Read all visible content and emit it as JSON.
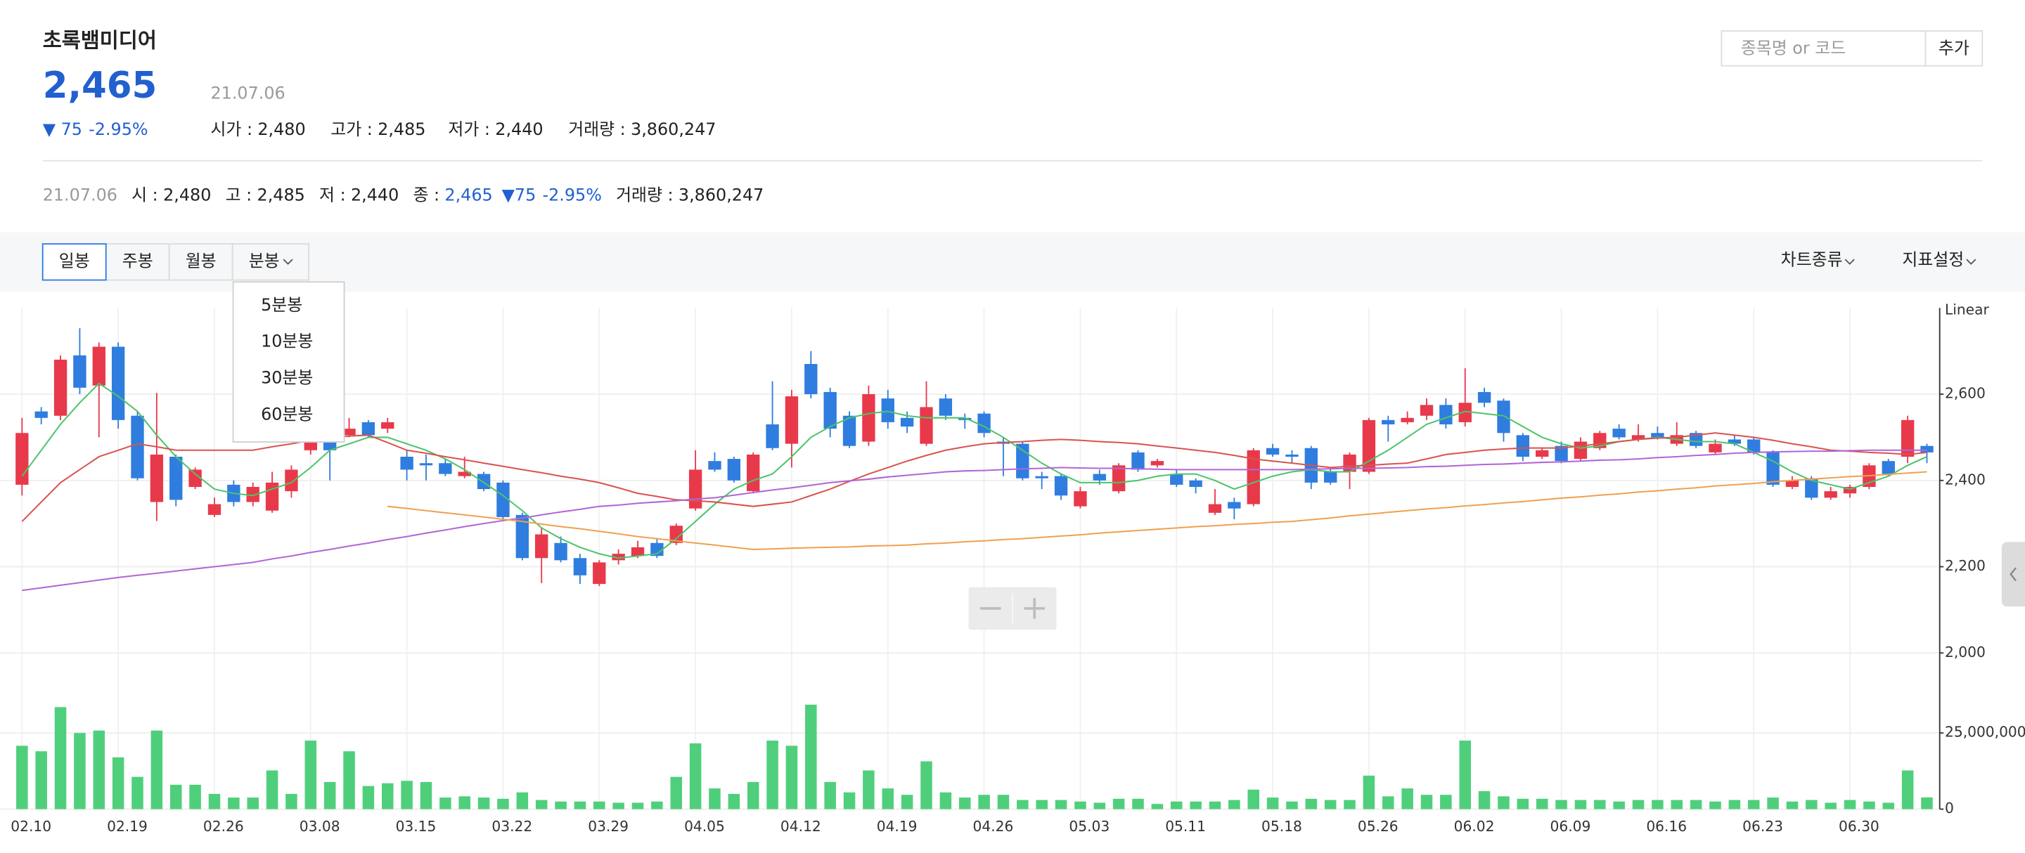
{
  "header": {
    "name": "초록뱀미디어",
    "price": "2,465",
    "change": "▼ 75",
    "change_rate": "-2.95%",
    "date": "21.07.06",
    "stats": [
      {
        "label": "시가 :",
        "value": "2,480"
      },
      {
        "label": "고가 :",
        "value": "2,485"
      },
      {
        "label": "저가 :",
        "value": "2,440"
      },
      {
        "label": "거래량 :",
        "value": "3,860,247"
      }
    ]
  },
  "search": {
    "placeholder": "종목명 or 코드",
    "button": "추가"
  },
  "summary": {
    "date": "21.07.06",
    "items": [
      {
        "label": "시 :",
        "value": "2,480"
      },
      {
        "label": "고 :",
        "value": "2,485"
      },
      {
        "label": "저 :",
        "value": "2,440"
      },
      {
        "label": "종 :",
        "value": "2,465"
      }
    ],
    "change": "▼75",
    "change_rate": "-2.95%",
    "volume_label": "거래량 :",
    "volume": "3,860,247"
  },
  "toolbar": {
    "periods": [
      "일봉",
      "주봉",
      "월봉",
      "분봉"
    ],
    "selected": 0,
    "menus": [
      "차트종류",
      "지표설정"
    ]
  },
  "dropdown": [
    "5분봉",
    "10분봉",
    "30분봉",
    "60분봉"
  ],
  "chart_data": [
    {
      "type": "candlestick",
      "scale_label": "Linear",
      "up_color": "#e8394b",
      "down_color": "#2f7ddf",
      "grid": true,
      "ylim": [
        2000,
        2800
      ],
      "yticks": [
        {
          "value": 2000,
          "label": "2,000"
        },
        {
          "value": 2200,
          "label": "2,200"
        },
        {
          "value": 2400,
          "label": "2,400"
        },
        {
          "value": 2600,
          "label": "2,600"
        }
      ],
      "categories": [
        "02.10",
        null,
        null,
        null,
        null,
        "02.19",
        null,
        null,
        null,
        null,
        "02.26",
        null,
        null,
        null,
        null,
        "03.08",
        null,
        null,
        null,
        null,
        "03.15",
        null,
        null,
        null,
        null,
        "03.22",
        null,
        null,
        null,
        null,
        "03.29",
        null,
        null,
        null,
        null,
        "04.05",
        null,
        null,
        null,
        null,
        "04.12",
        null,
        null,
        null,
        null,
        "04.19",
        null,
        null,
        null,
        null,
        "04.26",
        null,
        null,
        null,
        null,
        "05.03",
        null,
        null,
        null,
        null,
        "05.11",
        null,
        null,
        null,
        null,
        "05.18",
        null,
        null,
        null,
        null,
        "05.26",
        null,
        null,
        null,
        null,
        "06.02",
        null,
        null,
        null,
        null,
        "06.09",
        null,
        null,
        null,
        null,
        "06.16",
        null,
        null,
        null,
        null,
        "06.23",
        null,
        null,
        null,
        null,
        "06.30",
        null,
        null,
        null,
        null
      ],
      "open": [
        2390,
        2560,
        2550,
        2690,
        2620,
        2710,
        2550,
        2350,
        2455,
        2385,
        2320,
        2390,
        2350,
        2330,
        2375,
        2470,
        2490,
        2505,
        2535,
        2520,
        2455,
        2440,
        2440,
        2410,
        2415,
        2395,
        2320,
        2220,
        2255,
        2220,
        2160,
        2215,
        2225,
        2255,
        2255,
        2335,
        2445,
        2450,
        2375,
        2530,
        2485,
        2670,
        2605,
        2550,
        2490,
        2590,
        2545,
        2485,
        2590,
        2545,
        2555,
        2490,
        2485,
        2410,
        2410,
        2340,
        2415,
        2375,
        2465,
        2435,
        2415,
        2400,
        2325,
        2350,
        2345,
        2475,
        2460,
        2475,
        2420,
        2420,
        2420,
        2540,
        2535,
        2550,
        2575,
        2535,
        2605,
        2585,
        2505,
        2455,
        2480,
        2450,
        2475,
        2520,
        2495,
        2510,
        2485,
        2510,
        2465,
        2495,
        2495,
        2465,
        2385,
        2405,
        2360,
        2370,
        2385,
        2445,
        2455,
        2480
      ],
      "high": [
        2545,
        2570,
        2690,
        2753,
        2720,
        2720,
        2560,
        2603,
        2460,
        2430,
        2360,
        2400,
        2395,
        2420,
        2435,
        2510,
        2500,
        2545,
        2540,
        2545,
        2470,
        2460,
        2450,
        2455,
        2420,
        2400,
        2325,
        2290,
        2270,
        2230,
        2215,
        2240,
        2260,
        2265,
        2300,
        2470,
        2465,
        2455,
        2465,
        2630,
        2610,
        2700,
        2615,
        2560,
        2620,
        2610,
        2560,
        2630,
        2600,
        2555,
        2560,
        2500,
        2490,
        2420,
        2415,
        2385,
        2425,
        2440,
        2470,
        2450,
        2425,
        2405,
        2380,
        2360,
        2475,
        2485,
        2470,
        2480,
        2430,
        2465,
        2545,
        2550,
        2560,
        2590,
        2590,
        2660,
        2615,
        2590,
        2510,
        2475,
        2490,
        2500,
        2515,
        2530,
        2530,
        2525,
        2535,
        2515,
        2495,
        2505,
        2500,
        2470,
        2410,
        2410,
        2385,
        2390,
        2440,
        2450,
        2550,
        2485
      ],
      "low": [
        2365,
        2530,
        2540,
        2600,
        2500,
        2520,
        2400,
        2306,
        2340,
        2380,
        2315,
        2340,
        2340,
        2325,
        2360,
        2460,
        2400,
        2500,
        2500,
        2510,
        2400,
        2400,
        2410,
        2405,
        2375,
        2310,
        2215,
        2162,
        2210,
        2160,
        2155,
        2205,
        2220,
        2220,
        2250,
        2330,
        2420,
        2395,
        2370,
        2470,
        2430,
        2590,
        2500,
        2475,
        2480,
        2520,
        2510,
        2480,
        2540,
        2520,
        2500,
        2410,
        2400,
        2380,
        2355,
        2335,
        2390,
        2370,
        2420,
        2430,
        2385,
        2370,
        2320,
        2310,
        2340,
        2455,
        2440,
        2380,
        2390,
        2380,
        2415,
        2490,
        2530,
        2540,
        2520,
        2525,
        2570,
        2490,
        2445,
        2450,
        2440,
        2445,
        2470,
        2495,
        2490,
        2495,
        2480,
        2475,
        2460,
        2480,
        2460,
        2385,
        2380,
        2355,
        2355,
        2360,
        2380,
        2410,
        2440,
        2440
      ],
      "close": [
        2510,
        2545,
        2680,
        2615,
        2710,
        2540,
        2405,
        2460,
        2355,
        2425,
        2345,
        2350,
        2385,
        2395,
        2425,
        2500,
        2470,
        2520,
        2505,
        2535,
        2425,
        2435,
        2415,
        2420,
        2380,
        2315,
        2220,
        2275,
        2215,
        2180,
        2210,
        2230,
        2245,
        2225,
        2295,
        2425,
        2425,
        2400,
        2460,
        2475,
        2595,
        2600,
        2520,
        2480,
        2600,
        2535,
        2525,
        2570,
        2550,
        2540,
        2510,
        2485,
        2405,
        2405,
        2365,
        2375,
        2400,
        2435,
        2425,
        2445,
        2390,
        2385,
        2345,
        2335,
        2470,
        2460,
        2455,
        2395,
        2395,
        2460,
        2540,
        2530,
        2545,
        2575,
        2530,
        2580,
        2580,
        2510,
        2455,
        2470,
        2445,
        2490,
        2510,
        2500,
        2505,
        2500,
        2505,
        2480,
        2485,
        2485,
        2465,
        2390,
        2400,
        2360,
        2375,
        2385,
        2435,
        2415,
        2540,
        2465
      ],
      "overlays": [
        {
          "color": "#4cc46a",
          "values": [
            2410,
            2470,
            2530,
            2580,
            2625,
            2595,
            2560,
            2505,
            2455,
            2415,
            2380,
            2370,
            2365,
            2380,
            2395,
            2430,
            2470,
            2485,
            2500,
            2500,
            2485,
            2470,
            2450,
            2425,
            2395,
            2365,
            2330,
            2290,
            2265,
            2245,
            2230,
            2220,
            2225,
            2230,
            2265,
            2305,
            2345,
            2380,
            2400,
            2415,
            2455,
            2500,
            2525,
            2545,
            2555,
            2560,
            2550,
            2545,
            2545,
            2545,
            2525,
            2500,
            2470,
            2440,
            2415,
            2395,
            2395,
            2395,
            2400,
            2410,
            2415,
            2415,
            2400,
            2380,
            2395,
            2410,
            2420,
            2425,
            2420,
            2420,
            2445,
            2470,
            2500,
            2530,
            2545,
            2560,
            2555,
            2550,
            2525,
            2500,
            2485,
            2475,
            2480,
            2490,
            2495,
            2500,
            2495,
            2490,
            2490,
            2485,
            2465,
            2445,
            2420,
            2400,
            2390,
            2380,
            2395,
            2410,
            2435,
            2455
          ]
        },
        {
          "color": "#d9534f",
          "values": [
            2305,
            2350,
            2395,
            2425,
            2455,
            2470,
            2485,
            2478,
            2470,
            2470,
            2470,
            2470,
            2470,
            2478,
            2485,
            2493,
            2500,
            2503,
            2505,
            2488,
            2470,
            2463,
            2455,
            2448,
            2440,
            2433,
            2425,
            2418,
            2410,
            2403,
            2395,
            2383,
            2370,
            2363,
            2355,
            2353,
            2350,
            2345,
            2340,
            2345,
            2350,
            2365,
            2380,
            2398,
            2415,
            2430,
            2445,
            2458,
            2470,
            2478,
            2485,
            2488,
            2490,
            2493,
            2495,
            2493,
            2490,
            2488,
            2485,
            2480,
            2475,
            2470,
            2465,
            2458,
            2450,
            2445,
            2440,
            2435,
            2430,
            2433,
            2435,
            2438,
            2440,
            2450,
            2460,
            2465,
            2470,
            2473,
            2475,
            2475,
            2475,
            2480,
            2485,
            2490,
            2495,
            2498,
            2500,
            2505,
            2510,
            2505,
            2500,
            2493,
            2485,
            2478,
            2470,
            2468,
            2465,
            2463,
            2460,
            2465
          ]
        },
        {
          "color": "#b066d6",
          "values": [
            2145,
            2151,
            2157,
            2163,
            2169,
            2175,
            2180,
            2185,
            2190,
            2195,
            2200,
            2205,
            2210,
            2218,
            2225,
            2233,
            2240,
            2248,
            2255,
            2263,
            2270,
            2278,
            2285,
            2293,
            2300,
            2307,
            2313,
            2320,
            2327,
            2333,
            2340,
            2343,
            2347,
            2350,
            2353,
            2357,
            2360,
            2366,
            2372,
            2378,
            2383,
            2389,
            2395,
            2399,
            2403,
            2408,
            2412,
            2416,
            2420,
            2422,
            2423,
            2425,
            2427,
            2428,
            2430,
            2429,
            2428,
            2428,
            2427,
            2426,
            2425,
            2425,
            2425,
            2425,
            2425,
            2425,
            2425,
            2426,
            2427,
            2428,
            2428,
            2429,
            2430,
            2432,
            2433,
            2435,
            2437,
            2438,
            2440,
            2442,
            2443,
            2445,
            2447,
            2448,
            2450,
            2453,
            2455,
            2458,
            2460,
            2463,
            2465,
            2466,
            2467,
            2468,
            2468,
            2469,
            2470,
            2470,
            2470,
            2470
          ]
        },
        {
          "color": "#f0a050",
          "values": [
            null,
            null,
            null,
            null,
            null,
            null,
            null,
            null,
            null,
            null,
            null,
            null,
            null,
            null,
            null,
            null,
            null,
            null,
            null,
            2340,
            2335,
            2330,
            2325,
            2320,
            2315,
            2310,
            2305,
            2299,
            2293,
            2288,
            2282,
            2276,
            2270,
            2265,
            2260,
            2255,
            2250,
            2245,
            2240,
            2241,
            2243,
            2244,
            2245,
            2246,
            2248,
            2249,
            2250,
            2253,
            2255,
            2258,
            2260,
            2263,
            2265,
            2268,
            2271,
            2274,
            2278,
            2281,
            2284,
            2287,
            2290,
            2293,
            2295,
            2298,
            2300,
            2303,
            2305,
            2309,
            2313,
            2318,
            2322,
            2326,
            2330,
            2334,
            2337,
            2341,
            2344,
            2348,
            2351,
            2355,
            2359,
            2362,
            2366,
            2369,
            2373,
            2376,
            2380,
            2383,
            2387,
            2390,
            2393,
            2397,
            2400,
            2403,
            2406,
            2409,
            2411,
            2414,
            2417,
            2420
          ]
        }
      ]
    },
    {
      "type": "bar",
      "color": "#4fcf7c",
      "ylim": [
        0,
        50000000
      ],
      "yticks": [
        0,
        {
          "value": 25000000,
          "label": "25,000,000"
        }
      ],
      "grid": true,
      "values": [
        20800000,
        19000000,
        33500000,
        25000000,
        25800000,
        17000000,
        10600000,
        25800000,
        8000000,
        8000000,
        5000000,
        3800000,
        3800000,
        12700000,
        5000000,
        22500000,
        8900000,
        19000000,
        7600000,
        8500000,
        9300000,
        8900000,
        3800000,
        4200000,
        3800000,
        3400000,
        5500000,
        3000000,
        2500000,
        2500000,
        2500000,
        2100000,
        2100000,
        2500000,
        10600000,
        21600000,
        6800000,
        5000000,
        8900000,
        22500000,
        20800000,
        34300000,
        8900000,
        5500000,
        12700000,
        6800000,
        4700000,
        15700000,
        5500000,
        3800000,
        4700000,
        4700000,
        3000000,
        3000000,
        3000000,
        2500000,
        2100000,
        3400000,
        3400000,
        1700000,
        2500000,
        2500000,
        2500000,
        3000000,
        6400000,
        3800000,
        2500000,
        3400000,
        3000000,
        3000000,
        11000000,
        4200000,
        6800000,
        4700000,
        4700000,
        22500000,
        5900000,
        4200000,
        3400000,
        3400000,
        3000000,
        3000000,
        3000000,
        2500000,
        3000000,
        3000000,
        3000000,
        3000000,
        2500000,
        3000000,
        3000000,
        3800000,
        2500000,
        3000000,
        2100000,
        3000000,
        2500000,
        2100000,
        12700000,
        3860247
      ]
    }
  ]
}
